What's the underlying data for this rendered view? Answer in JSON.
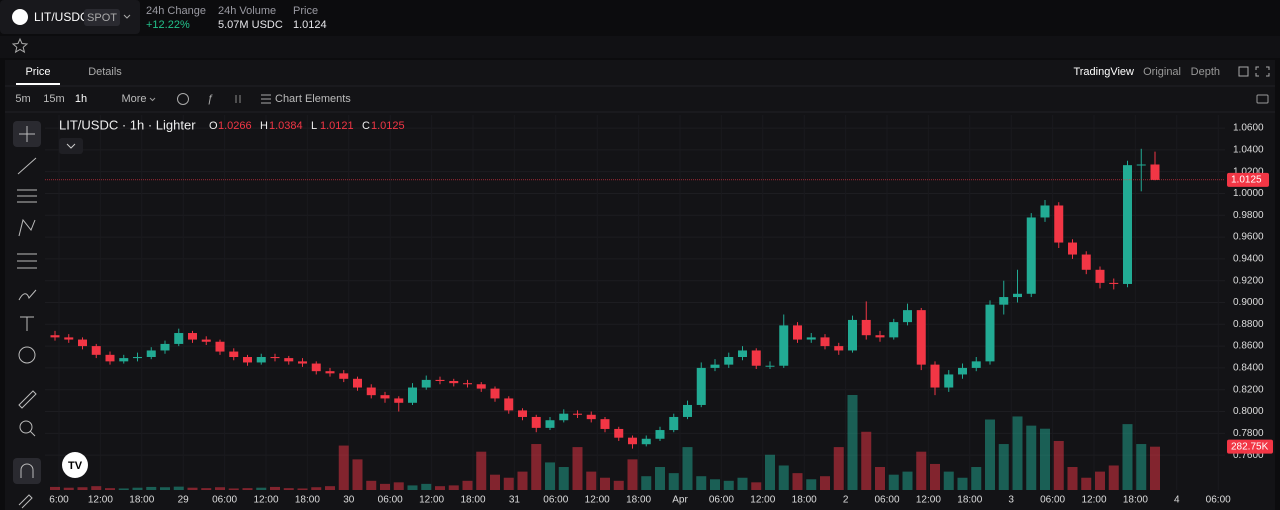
{
  "header": {
    "pair": "LIT/USDC",
    "market": "SPOT",
    "change_label": "24h Change",
    "change": "+12.22%",
    "volume_label": "24h Volume",
    "volume": "5.07M USDC",
    "price_label": "Price",
    "price": "1.0124"
  },
  "tabs": [
    "Price",
    "Details"
  ],
  "views": [
    "TradingView",
    "Original",
    "Depth"
  ],
  "intervals": [
    "5m",
    "15m",
    "1h",
    "More"
  ],
  "chart_elements": "Chart Elements",
  "chart_data": {
    "type": "candlestick",
    "title": "LIT/USDC · 1h · Lighter",
    "ohlc_letters": [
      "O",
      "H",
      "L",
      "C"
    ],
    "up_color": "#22ab94",
    "down_color": "#f23645",
    "x_labels": [
      "6:00",
      "12:00",
      "18:00",
      "29",
      "06:00",
      "12:00",
      "18:00",
      "30",
      "06:00",
      "12:00",
      "18:00",
      "31",
      "06:00",
      "12:00",
      "18:00",
      "Apr",
      "06:00",
      "12:00",
      "18:00",
      "2",
      "06:00",
      "12:00",
      "18:00",
      "3",
      "06:00",
      "12:00",
      "18:00",
      "4",
      "06:00"
    ],
    "ylim": [
      0.728,
      1.072
    ],
    "yticks": [
      {
        "value": 1.06,
        "label": "1.0600"
      },
      {
        "value": 1.04,
        "label": "1.0400"
      },
      {
        "value": 1.02,
        "label": "1.0200"
      },
      {
        "value": 1.0,
        "label": "1.0000"
      },
      {
        "value": 0.98,
        "label": "0.9800"
      },
      {
        "value": 0.96,
        "label": "0.9600"
      },
      {
        "value": 0.94,
        "label": "0.9400"
      },
      {
        "value": 0.92,
        "label": "0.9200"
      },
      {
        "value": 0.9,
        "label": "0.9000"
      },
      {
        "value": 0.88,
        "label": "0.8800"
      },
      {
        "value": 0.86,
        "label": "0.8600"
      },
      {
        "value": 0.84,
        "label": "0.8400"
      },
      {
        "value": 0.82,
        "label": "0.8200"
      },
      {
        "value": 0.8,
        "label": "0.8000"
      },
      {
        "value": 0.78,
        "label": "0.7800"
      },
      {
        "value": 0.76,
        "label": "0.7600"
      }
    ],
    "open": [
      0.87,
      0.868,
      0.866,
      0.86,
      0.852,
      0.846,
      0.849,
      0.85,
      0.856,
      0.862,
      0.872,
      0.866,
      0.864,
      0.855,
      0.85,
      0.845,
      0.85,
      0.849,
      0.846,
      0.844,
      0.837,
      0.835,
      0.83,
      0.822,
      0.815,
      0.812,
      0.808,
      0.822,
      0.829,
      0.828,
      0.826,
      0.825,
      0.821,
      0.812,
      0.801,
      0.795,
      0.785,
      0.792,
      0.798,
      0.797,
      0.793,
      0.784,
      0.776,
      0.77,
      0.775,
      0.783,
      0.795,
      0.806,
      0.84,
      0.843,
      0.85,
      0.856,
      0.842,
      0.842,
      0.879,
      0.866,
      0.868,
      0.86,
      0.856,
      0.884,
      0.87,
      0.868,
      0.882,
      0.893,
      0.843,
      0.822,
      0.834,
      0.84,
      0.846,
      0.898,
      0.905,
      0.908,
      0.978,
      0.989,
      0.955,
      0.944,
      0.93,
      0.918,
      0.917,
      1.026,
      1.0266
    ],
    "high": [
      0.874,
      0.871,
      0.868,
      0.862,
      0.855,
      0.852,
      0.854,
      0.859,
      0.865,
      0.876,
      0.874,
      0.869,
      0.866,
      0.858,
      0.852,
      0.853,
      0.853,
      0.851,
      0.849,
      0.846,
      0.84,
      0.838,
      0.832,
      0.825,
      0.818,
      0.814,
      0.826,
      0.833,
      0.832,
      0.83,
      0.829,
      0.827,
      0.823,
      0.814,
      0.803,
      0.797,
      0.795,
      0.802,
      0.801,
      0.8,
      0.795,
      0.786,
      0.778,
      0.778,
      0.786,
      0.798,
      0.81,
      0.845,
      0.848,
      0.854,
      0.86,
      0.858,
      0.846,
      0.889,
      0.882,
      0.872,
      0.871,
      0.863,
      0.888,
      0.901,
      0.874,
      0.885,
      0.899,
      0.895,
      0.846,
      0.838,
      0.844,
      0.85,
      0.902,
      0.92,
      0.93,
      0.982,
      0.994,
      0.992,
      0.958,
      0.947,
      0.933,
      0.922,
      1.03,
      1.041,
      1.0384
    ],
    "low": [
      0.865,
      0.863,
      0.857,
      0.849,
      0.843,
      0.844,
      0.846,
      0.848,
      0.853,
      0.86,
      0.863,
      0.861,
      0.852,
      0.847,
      0.842,
      0.843,
      0.846,
      0.843,
      0.841,
      0.834,
      0.832,
      0.827,
      0.819,
      0.812,
      0.808,
      0.8,
      0.806,
      0.82,
      0.825,
      0.823,
      0.822,
      0.818,
      0.809,
      0.798,
      0.792,
      0.781,
      0.783,
      0.79,
      0.794,
      0.79,
      0.781,
      0.773,
      0.766,
      0.768,
      0.773,
      0.781,
      0.793,
      0.804,
      0.837,
      0.84,
      0.847,
      0.839,
      0.839,
      0.84,
      0.863,
      0.863,
      0.857,
      0.852,
      0.854,
      0.866,
      0.864,
      0.866,
      0.879,
      0.838,
      0.815,
      0.818,
      0.83,
      0.837,
      0.843,
      0.889,
      0.9,
      0.905,
      0.974,
      0.95,
      0.94,
      0.926,
      0.913,
      0.912,
      0.914,
      1.002,
      1.0121
    ],
    "close": [
      0.868,
      0.866,
      0.86,
      0.852,
      0.846,
      0.849,
      0.85,
      0.856,
      0.862,
      0.872,
      0.866,
      0.864,
      0.855,
      0.85,
      0.845,
      0.85,
      0.849,
      0.846,
      0.844,
      0.837,
      0.835,
      0.83,
      0.822,
      0.815,
      0.812,
      0.808,
      0.822,
      0.829,
      0.828,
      0.826,
      0.825,
      0.821,
      0.812,
      0.801,
      0.795,
      0.785,
      0.792,
      0.798,
      0.797,
      0.793,
      0.784,
      0.776,
      0.77,
      0.775,
      0.783,
      0.795,
      0.806,
      0.84,
      0.843,
      0.85,
      0.856,
      0.842,
      0.842,
      0.879,
      0.866,
      0.868,
      0.86,
      0.856,
      0.884,
      0.87,
      0.868,
      0.882,
      0.893,
      0.843,
      0.822,
      0.834,
      0.84,
      0.846,
      0.898,
      0.905,
      0.908,
      0.978,
      0.989,
      0.955,
      0.944,
      0.93,
      0.918,
      0.917,
      1.026,
      1.0266,
      1.0125
    ],
    "volume": [
      20000,
      15000,
      18000,
      25000,
      12000,
      10000,
      15000,
      20000,
      18000,
      22000,
      15000,
      12000,
      18000,
      10000,
      12000,
      15000,
      20000,
      12000,
      10000,
      18000,
      25000,
      290000,
      200000,
      60000,
      40000,
      50000,
      30000,
      40000,
      25000,
      30000,
      60000,
      250000,
      100000,
      80000,
      120000,
      300000,
      180000,
      150000,
      280000,
      120000,
      80000,
      60000,
      200000,
      90000,
      150000,
      110000,
      280000,
      90000,
      70000,
      60000,
      80000,
      50000,
      230000,
      160000,
      110000,
      70000,
      90000,
      280000,
      620000,
      380000,
      150000,
      100000,
      120000,
      250000,
      170000,
      120000,
      80000,
      150000,
      460000,
      300000,
      480000,
      420000,
      400000,
      320000,
      150000,
      80000,
      120000,
      160000,
      430000,
      300000,
      282750
    ],
    "last_volume_label": "282.75K"
  }
}
